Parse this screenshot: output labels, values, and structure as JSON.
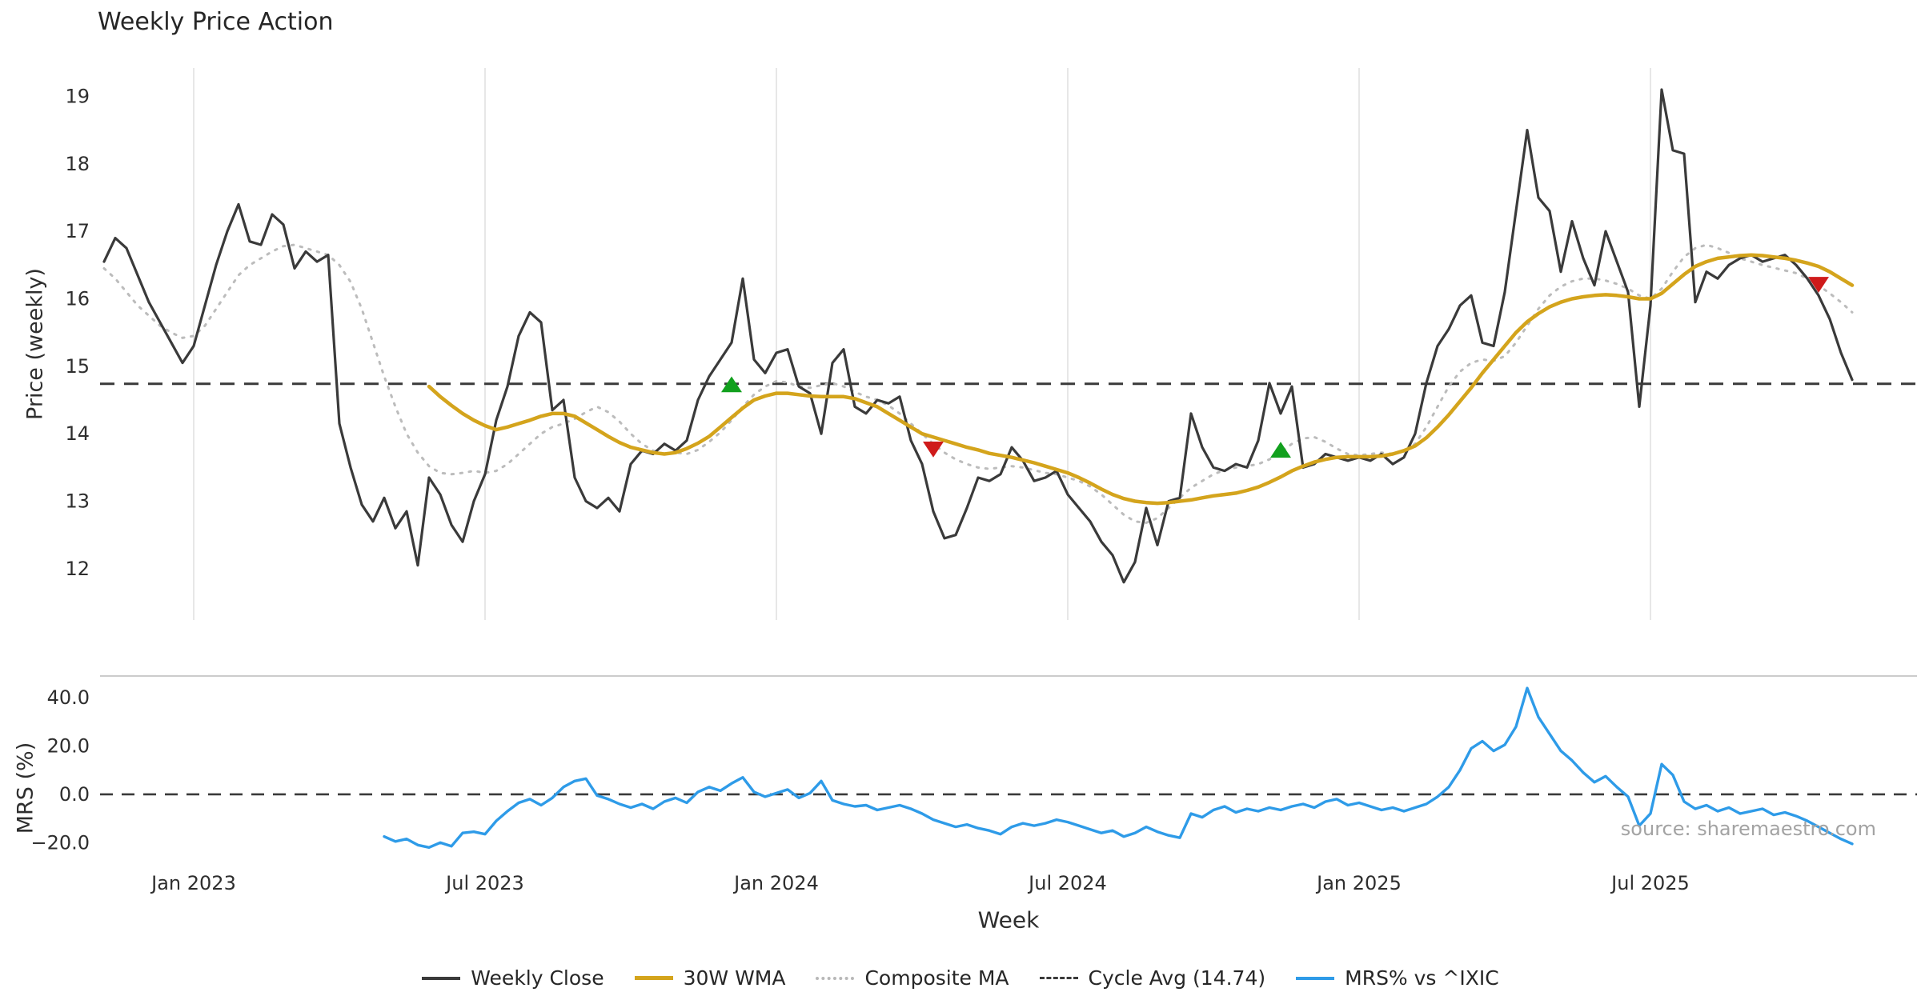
{
  "title": "Weekly Price Action",
  "xlabel": "Week",
  "source_text": "source: sharemaestro.com",
  "legend": {
    "items": [
      {
        "label": "Weekly Close",
        "style": "solid",
        "color": "#3a3a3a",
        "weight": 4
      },
      {
        "label": "30W WMA",
        "style": "solid",
        "color": "#d4a41c",
        "weight": 5
      },
      {
        "label": "Composite MA",
        "style": "dotted",
        "color": "#b8b8b8",
        "weight": 4
      },
      {
        "label": "Cycle Avg (14.74)",
        "style": "dashed",
        "color": "#3a3a3a",
        "weight": 3
      },
      {
        "label": "MRS% vs ^IXIC",
        "style": "solid",
        "color": "#2e9be8",
        "weight": 4
      }
    ]
  },
  "chart_data": {
    "type": "line",
    "title": "Weekly Price Action",
    "xlabel": "Week",
    "legend_position": "bottom-center",
    "x_tick_labels": [
      "Jan 2023",
      "Jul 2023",
      "Jan 2024",
      "Jul 2024",
      "Jan 2025",
      "Jul 2025"
    ],
    "x_tick_indices": [
      8,
      34,
      60,
      86,
      112,
      138
    ],
    "n_points": 157,
    "price_panel": {
      "ylabel": "Price (weekly)",
      "yticks": [
        19,
        18,
        17,
        16,
        15,
        14,
        13,
        12
      ],
      "ylim": [
        11.24,
        19.42
      ],
      "grid": "vertical",
      "cycle_avg": 14.74
    },
    "mrs_panel": {
      "ylabel": "MRS (%)",
      "yticks": [
        40,
        20,
        0,
        -20
      ],
      "ytick_labels": [
        "40.0",
        "20.0",
        "0.0",
        "−20.0"
      ],
      "ylim": [
        -27.2,
        49.0
      ],
      "zero_line": 0
    },
    "series": [
      {
        "id": "composite-ma",
        "name": "Composite MA",
        "panel": "price",
        "color": "#bcbcbc",
        "width": 3,
        "dash": "2.5 8.5",
        "start": 0,
        "values": [
          16.45,
          16.3,
          16.1,
          15.9,
          15.75,
          15.6,
          15.5,
          15.42,
          15.45,
          15.6,
          15.85,
          16.1,
          16.35,
          16.5,
          16.6,
          16.7,
          16.78,
          16.8,
          16.75,
          16.7,
          16.65,
          16.5,
          16.25,
          15.85,
          15.35,
          14.85,
          14.4,
          14.0,
          13.72,
          13.52,
          13.42,
          13.4,
          13.42,
          13.45,
          13.42,
          13.45,
          13.55,
          13.7,
          13.85,
          14.0,
          14.1,
          14.15,
          14.22,
          14.32,
          14.4,
          14.32,
          14.18,
          14.0,
          13.85,
          13.75,
          13.7,
          13.72,
          13.7,
          13.76,
          13.88,
          14.02,
          14.2,
          14.4,
          14.58,
          14.7,
          14.78,
          14.76,
          14.7,
          14.68,
          14.72,
          14.75,
          14.7,
          14.62,
          14.55,
          14.5,
          14.42,
          14.3,
          14.15,
          14.0,
          13.85,
          13.72,
          13.62,
          13.55,
          13.5,
          13.48,
          13.5,
          13.52,
          13.5,
          13.46,
          13.42,
          13.4,
          13.35,
          13.3,
          13.22,
          13.1,
          12.95,
          12.8,
          12.7,
          12.68,
          12.75,
          12.9,
          13.05,
          13.2,
          13.3,
          13.4,
          13.46,
          13.5,
          13.52,
          13.55,
          13.62,
          13.72,
          13.85,
          13.93,
          13.95,
          13.88,
          13.78,
          13.7,
          13.68,
          13.7,
          13.72,
          13.7,
          13.74,
          13.85,
          14.1,
          14.4,
          14.7,
          14.92,
          15.05,
          15.1,
          15.08,
          15.15,
          15.35,
          15.6,
          15.85,
          16.05,
          16.18,
          16.26,
          16.3,
          16.3,
          16.27,
          16.22,
          16.15,
          16.05,
          16.0,
          16.15,
          16.4,
          16.62,
          16.75,
          16.8,
          16.75,
          16.68,
          16.6,
          16.55,
          16.5,
          16.46,
          16.42,
          16.38,
          16.3,
          16.2,
          16.08,
          15.95,
          15.8
        ]
      },
      {
        "id": "weekly-close",
        "name": "Weekly Close",
        "panel": "price",
        "color": "#3a3a3a",
        "width": 3.2,
        "start": 0,
        "values": [
          16.55,
          16.9,
          16.75,
          16.35,
          15.95,
          15.65,
          15.35,
          15.05,
          15.3,
          15.9,
          16.5,
          17.0,
          17.4,
          16.85,
          16.8,
          17.25,
          17.1,
          16.45,
          16.7,
          16.55,
          16.65,
          14.15,
          13.5,
          12.95,
          12.7,
          13.05,
          12.6,
          12.85,
          12.05,
          13.35,
          13.1,
          12.65,
          12.4,
          13.0,
          13.4,
          14.2,
          14.7,
          15.45,
          15.8,
          15.65,
          14.35,
          14.5,
          13.35,
          13.0,
          12.9,
          13.05,
          12.85,
          13.55,
          13.75,
          13.7,
          13.85,
          13.75,
          13.9,
          14.5,
          14.85,
          15.1,
          15.35,
          16.3,
          15.1,
          14.9,
          15.2,
          15.25,
          14.7,
          14.6,
          14.0,
          15.05,
          15.25,
          14.4,
          14.3,
          14.5,
          14.45,
          14.55,
          13.9,
          13.55,
          12.85,
          12.45,
          12.5,
          12.9,
          13.35,
          13.3,
          13.4,
          13.8,
          13.6,
          13.3,
          13.35,
          13.45,
          13.1,
          12.9,
          12.7,
          12.4,
          12.2,
          11.8,
          12.1,
          12.9,
          12.35,
          13.0,
          13.05,
          14.3,
          13.8,
          13.5,
          13.45,
          13.55,
          13.5,
          13.9,
          14.75,
          14.3,
          14.7,
          13.5,
          13.55,
          13.7,
          13.65,
          13.6,
          13.65,
          13.6,
          13.7,
          13.55,
          13.65,
          14.0,
          14.75,
          15.3,
          15.55,
          15.9,
          16.05,
          15.35,
          15.3,
          16.1,
          17.3,
          18.5,
          17.5,
          17.3,
          16.4,
          17.15,
          16.6,
          16.2,
          17.0,
          16.55,
          16.1,
          14.4,
          15.9,
          19.1,
          18.2,
          18.15,
          15.95,
          16.4,
          16.3,
          16.5,
          16.6,
          16.65,
          16.55,
          16.6,
          16.65,
          16.5,
          16.3,
          16.05,
          15.7,
          15.2,
          14.8
        ]
      },
      {
        "id": "wma-30w",
        "name": "30W WMA",
        "panel": "price",
        "color": "#d4a41c",
        "width": 4.5,
        "start": 29,
        "values": [
          14.7,
          14.55,
          14.42,
          14.3,
          14.2,
          14.12,
          14.06,
          14.1,
          14.15,
          14.2,
          14.26,
          14.3,
          14.3,
          14.26,
          14.16,
          14.06,
          13.96,
          13.87,
          13.8,
          13.76,
          13.72,
          13.7,
          13.72,
          13.78,
          13.86,
          13.96,
          14.1,
          14.24,
          14.38,
          14.5,
          14.56,
          14.6,
          14.6,
          14.58,
          14.56,
          14.55,
          14.55,
          14.55,
          14.52,
          14.46,
          14.4,
          14.3,
          14.2,
          14.1,
          14.0,
          13.95,
          13.9,
          13.85,
          13.8,
          13.76,
          13.71,
          13.68,
          13.65,
          13.61,
          13.57,
          13.52,
          13.47,
          13.42,
          13.35,
          13.27,
          13.18,
          13.1,
          13.04,
          13.0,
          12.98,
          12.97,
          12.98,
          13.0,
          13.02,
          13.05,
          13.08,
          13.1,
          13.12,
          13.16,
          13.21,
          13.28,
          13.36,
          13.45,
          13.52,
          13.58,
          13.62,
          13.65,
          13.66,
          13.66,
          13.66,
          13.67,
          13.7,
          13.75,
          13.82,
          13.94,
          14.1,
          14.28,
          14.48,
          14.68,
          14.9,
          15.1,
          15.3,
          15.5,
          15.66,
          15.78,
          15.88,
          15.95,
          16.0,
          16.03,
          16.05,
          16.06,
          16.05,
          16.03,
          16.0,
          16.0,
          16.08,
          16.22,
          16.36,
          16.48,
          16.55,
          16.6,
          16.62,
          16.64,
          16.65,
          16.64,
          16.62,
          16.6,
          16.57,
          16.53,
          16.48,
          16.4,
          16.3,
          16.2
        ]
      },
      {
        "id": "mrs",
        "name": "MRS% vs ^IXIC",
        "panel": "mrs",
        "color": "#2e9be8",
        "width": 3.4,
        "start": 25,
        "values": [
          -17.5,
          -19.5,
          -18.5,
          -21.0,
          -22.0,
          -20.0,
          -21.5,
          -16.0,
          -15.5,
          -16.5,
          -11.0,
          -7.0,
          -3.5,
          -2.0,
          -4.5,
          -1.5,
          3.0,
          5.5,
          6.5,
          -0.5,
          -2.0,
          -4.0,
          -5.5,
          -4.0,
          -6.0,
          -3.0,
          -1.5,
          -3.5,
          1.0,
          3.0,
          1.5,
          4.5,
          7.0,
          1.0,
          -1.0,
          0.5,
          2.0,
          -1.5,
          0.5,
          5.5,
          -2.5,
          -4.0,
          -5.0,
          -4.5,
          -6.5,
          -5.5,
          -4.5,
          -6.0,
          -8.0,
          -10.5,
          -12.0,
          -13.5,
          -12.5,
          -14.0,
          -15.0,
          -16.5,
          -13.5,
          -12.0,
          -13.0,
          -12.0,
          -10.5,
          -11.5,
          -13.0,
          -14.5,
          -16.0,
          -15.0,
          -17.5,
          -16.0,
          -13.5,
          -15.5,
          -17.0,
          -18.0,
          -8.0,
          -9.5,
          -6.5,
          -5.0,
          -7.5,
          -6.0,
          -7.0,
          -5.5,
          -6.5,
          -5.0,
          -4.0,
          -5.5,
          -3.0,
          -2.0,
          -4.5,
          -3.5,
          -5.0,
          -6.5,
          -5.5,
          -7.0,
          -5.5,
          -4.0,
          -1.0,
          3.0,
          10.0,
          19.0,
          22.0,
          18.0,
          20.5,
          28.0,
          44.0,
          32.0,
          25.0,
          18.0,
          14.0,
          9.0,
          5.0,
          7.5,
          3.0,
          -1.0,
          -13.0,
          -8.0,
          12.5,
          8.0,
          -3.0,
          -6.0,
          -4.5,
          -7.0,
          -5.5,
          -8.0,
          -7.0,
          -6.0,
          -8.5,
          -7.5,
          -9.0,
          -11.0,
          -13.5,
          -16.0,
          -18.5,
          -20.5
        ]
      }
    ],
    "markers": [
      {
        "type": "buy",
        "shape": "triangle-up",
        "color": "#12a01e",
        "index": 56,
        "price": 14.72
      },
      {
        "type": "sell",
        "shape": "triangle-down",
        "color": "#cf1b1b",
        "index": 74,
        "price": 13.78
      },
      {
        "type": "buy",
        "shape": "triangle-up",
        "color": "#12a01e",
        "index": 105,
        "price": 13.75
      },
      {
        "type": "sell",
        "shape": "triangle-down",
        "color": "#cf1b1b",
        "index": 153,
        "price": 16.22
      }
    ]
  }
}
